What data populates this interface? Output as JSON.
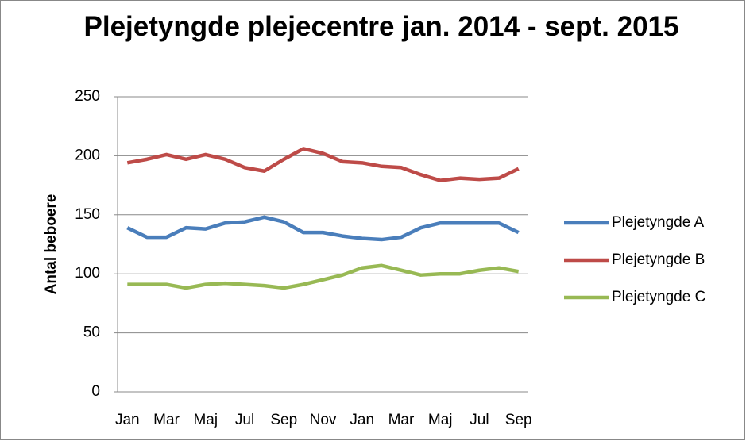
{
  "chart_data": {
    "type": "line",
    "title": "Plejetyngde plejecentre jan. 2014 - sept. 2015",
    "y_label": "Antal beboere",
    "categories": [
      "Jan",
      null,
      "Mar",
      null,
      "Maj",
      null,
      "Jul",
      null,
      "Sep",
      null,
      "Nov",
      null,
      "Jan",
      null,
      "Mar",
      null,
      "Maj",
      null,
      "Jul",
      null,
      "Sep"
    ],
    "series": [
      {
        "name": "Plejetyngde A",
        "color": "#4a7ebb",
        "values": [
          139,
          131,
          131,
          139,
          138,
          143,
          144,
          148,
          144,
          135,
          135,
          132,
          130,
          129,
          131,
          139,
          143,
          143,
          143,
          143,
          135
        ]
      },
      {
        "name": "Plejetyngde B",
        "color": "#be4b48",
        "values": [
          194,
          197,
          201,
          197,
          201,
          197,
          190,
          187,
          197,
          206,
          202,
          195,
          194,
          191,
          190,
          184,
          179,
          181,
          180,
          181,
          189
        ]
      },
      {
        "name": "Plejetyngde C",
        "color": "#98b954",
        "values": [
          91,
          91,
          91,
          88,
          91,
          92,
          91,
          90,
          88,
          91,
          95,
          99,
          105,
          107,
          103,
          99,
          100,
          100,
          103,
          105,
          102
        ]
      }
    ],
    "ylim": [
      0,
      250
    ],
    "yticks": [
      0,
      50,
      100,
      150,
      200,
      250
    ],
    "grid": true,
    "legend": "right"
  }
}
